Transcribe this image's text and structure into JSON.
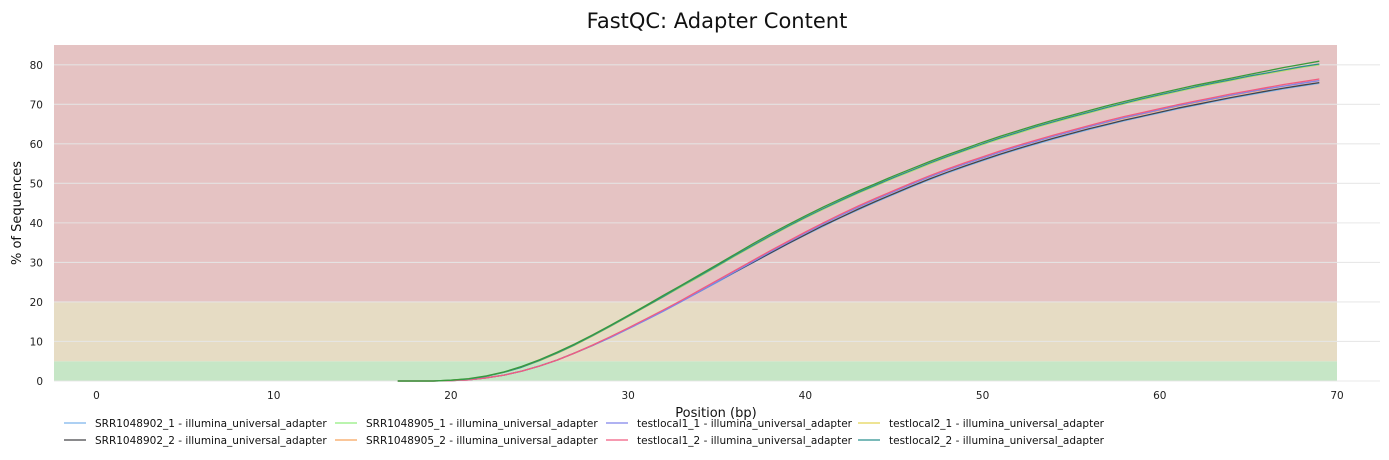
{
  "chart_data": {
    "type": "line",
    "title": "FastQC: Adapter Content",
    "xlabel": "Position (bp)",
    "ylabel": "% of Sequences",
    "xlim": [
      -2.4,
      70
    ],
    "ylim": [
      0,
      85
    ],
    "xticks": [
      0,
      10,
      20,
      30,
      40,
      50,
      60,
      70
    ],
    "yticks": [
      0,
      10,
      20,
      30,
      40,
      50,
      60,
      70,
      80
    ],
    "grid": true,
    "legend_position": "bottom",
    "bands": [
      {
        "from": 0,
        "to": 5,
        "color": "#c6e6c6"
      },
      {
        "from": 5,
        "to": 20,
        "color": "#e6dcc4"
      },
      {
        "from": 20,
        "to": 85,
        "color": "#e5c3c3"
      }
    ],
    "x": [
      17,
      18,
      19,
      20,
      21,
      22,
      23,
      24,
      25,
      26,
      27,
      28,
      29,
      30,
      31,
      32,
      33,
      34,
      35,
      36,
      37,
      38,
      39,
      40,
      41,
      42,
      43,
      44,
      45,
      46,
      47,
      48,
      49,
      50,
      51,
      52,
      53,
      54,
      55,
      56,
      57,
      58,
      59,
      60,
      61,
      62,
      63,
      64,
      65,
      66,
      67,
      68,
      69
    ],
    "series": [
      {
        "name": "SRR1048902_1 - illumina_universal_adapter",
        "color": "#7cb5ec",
        "values": [
          0,
          0,
          0,
          0.1,
          0.3,
          0.8,
          1.5,
          2.5,
          3.8,
          5.3,
          7.1,
          9.0,
          11.0,
          13.2,
          15.4,
          17.7,
          20.1,
          22.5,
          24.9,
          27.4,
          29.8,
          32.2,
          34.6,
          36.9,
          39.1,
          41.3,
          43.3,
          45.3,
          47.2,
          49.1,
          50.9,
          52.6,
          54.2,
          55.7,
          57.2,
          58.6,
          59.9,
          61.2,
          62.4,
          63.6,
          64.7,
          65.8,
          66.8,
          67.8,
          68.8,
          69.7,
          70.6,
          71.5,
          72.3,
          73.1,
          73.9,
          74.6,
          75.3
        ]
      },
      {
        "name": "SRR1048902_2 - illumina_universal_adapter",
        "color": "#434348",
        "values": [
          0,
          0,
          0,
          0.1,
          0.3,
          0.8,
          1.5,
          2.5,
          3.8,
          5.3,
          7.1,
          9.0,
          11.1,
          13.3,
          15.5,
          17.8,
          20.2,
          22.6,
          25.1,
          27.5,
          29.9,
          32.3,
          34.7,
          37.0,
          39.3,
          41.4,
          43.5,
          45.5,
          47.4,
          49.3,
          51.1,
          52.8,
          54.4,
          55.9,
          57.4,
          58.8,
          60.1,
          61.4,
          62.6,
          63.8,
          64.9,
          66.0,
          67.0,
          68.0,
          69.0,
          69.9,
          70.8,
          71.7,
          72.5,
          73.3,
          74.1,
          74.8,
          75.5
        ]
      },
      {
        "name": "SRR1048905_1 - illumina_universal_adapter",
        "color": "#90ed7d",
        "values": [
          0,
          0,
          0,
          0.2,
          0.5,
          1.2,
          2.2,
          3.5,
          5.1,
          7.0,
          9.1,
          11.4,
          13.8,
          16.3,
          18.8,
          21.3,
          23.8,
          26.3,
          28.9,
          31.5,
          34.0,
          36.5,
          38.9,
          41.2,
          43.4,
          45.5,
          47.5,
          49.4,
          51.3,
          53.1,
          54.9,
          56.6,
          58.2,
          59.8,
          61.3,
          62.7,
          64.1,
          65.4,
          66.6,
          67.8,
          69.0,
          70.1,
          71.2,
          72.2,
          73.2,
          74.2,
          75.1,
          76.0,
          76.9,
          77.7,
          78.5,
          79.3,
          80.0
        ]
      },
      {
        "name": "SRR1048905_2 - illumina_universal_adapter",
        "color": "#f7a35c",
        "values": [
          0,
          0,
          0,
          0.1,
          0.3,
          0.8,
          1.5,
          2.5,
          3.8,
          5.3,
          7.1,
          9.0,
          11.1,
          13.3,
          15.6,
          17.9,
          20.3,
          22.8,
          25.3,
          27.8,
          30.3,
          32.7,
          35.1,
          37.4,
          39.7,
          41.9,
          44.0,
          46.0,
          47.9,
          49.8,
          51.6,
          53.3,
          54.9,
          56.4,
          57.9,
          59.3,
          60.6,
          61.9,
          63.1,
          64.3,
          65.4,
          66.5,
          67.5,
          68.5,
          69.5,
          70.4,
          71.3,
          72.2,
          73.0,
          73.8,
          74.6,
          75.3,
          76.0
        ]
      },
      {
        "name": "testlocal1_1 - illumina_universal_adapter",
        "color": "#8085e9",
        "values": [
          0,
          0,
          0,
          0.1,
          0.3,
          0.8,
          1.5,
          2.5,
          3.8,
          5.3,
          7.1,
          9.0,
          11.0,
          13.2,
          15.4,
          17.7,
          20.1,
          22.6,
          25.1,
          27.6,
          30.1,
          32.6,
          35.0,
          37.4,
          39.7,
          41.9,
          44.0,
          46.0,
          47.9,
          49.8,
          51.6,
          53.3,
          54.9,
          56.4,
          57.9,
          59.3,
          60.6,
          61.9,
          63.1,
          64.3,
          65.5,
          66.6,
          67.6,
          68.6,
          69.6,
          70.5,
          71.4,
          72.3,
          73.1,
          73.9,
          74.6,
          75.3,
          76.0
        ]
      },
      {
        "name": "testlocal1_2 - illumina_universal_adapter",
        "color": "#f15c80",
        "values": [
          0,
          0,
          0,
          0.1,
          0.3,
          0.8,
          1.5,
          2.5,
          3.8,
          5.3,
          7.1,
          9.1,
          11.2,
          13.4,
          15.7,
          18.0,
          20.4,
          22.9,
          25.4,
          27.9,
          30.4,
          32.9,
          35.3,
          37.7,
          40.0,
          42.2,
          44.3,
          46.3,
          48.2,
          50.1,
          51.9,
          53.6,
          55.2,
          56.7,
          58.2,
          59.6,
          60.9,
          62.2,
          63.4,
          64.6,
          65.8,
          66.9,
          67.9,
          68.9,
          69.9,
          70.8,
          71.7,
          72.6,
          73.4,
          74.2,
          75.0,
          75.7,
          76.4
        ]
      },
      {
        "name": "testlocal2_1 - illumina_universal_adapter",
        "color": "#e4d354",
        "values": [
          0,
          0,
          0,
          0.2,
          0.5,
          1.2,
          2.2,
          3.5,
          5.1,
          7.0,
          9.1,
          11.4,
          13.8,
          16.3,
          18.8,
          21.3,
          23.9,
          26.4,
          29.0,
          31.6,
          34.1,
          36.6,
          39.0,
          41.3,
          43.5,
          45.6,
          47.6,
          49.5,
          51.4,
          53.2,
          55.0,
          56.7,
          58.3,
          59.9,
          61.4,
          62.8,
          64.2,
          65.5,
          66.7,
          67.9,
          69.1,
          70.2,
          71.3,
          72.3,
          73.3,
          74.3,
          75.2,
          76.1,
          77.0,
          77.8,
          78.6,
          79.4,
          80.1
        ]
      },
      {
        "name": "testlocal2_2 - illumina_universal_adapter",
        "color": "#2b908f",
        "values": [
          0,
          0,
          0,
          0.2,
          0.5,
          1.2,
          2.2,
          3.5,
          5.2,
          7.1,
          9.2,
          11.5,
          13.9,
          16.4,
          18.9,
          21.4,
          24.0,
          26.5,
          29.1,
          31.7,
          34.2,
          36.7,
          39.1,
          41.4,
          43.6,
          45.7,
          47.7,
          49.6,
          51.5,
          53.3,
          55.1,
          56.8,
          58.4,
          60.0,
          61.5,
          62.9,
          64.3,
          65.6,
          66.8,
          68.0,
          69.2,
          70.3,
          71.4,
          72.4,
          73.4,
          74.4,
          75.3,
          76.2,
          77.1,
          77.9,
          78.7,
          79.5,
          80.2
        ]
      },
      {
        "name": "",
        "color": "#3a9a3a",
        "values": [
          0,
          0,
          0,
          0.2,
          0.6,
          1.3,
          2.3,
          3.7,
          5.4,
          7.3,
          9.4,
          11.7,
          14.1,
          16.6,
          19.1,
          21.7,
          24.2,
          26.8,
          29.4,
          32.0,
          34.6,
          37.1,
          39.5,
          41.8,
          44.0,
          46.1,
          48.1,
          50.0,
          51.9,
          53.7,
          55.5,
          57.2,
          58.8,
          60.4,
          61.9,
          63.3,
          64.7,
          66.0,
          67.2,
          68.4,
          69.6,
          70.7,
          71.8,
          72.8,
          73.8,
          74.8,
          75.7,
          76.6,
          77.5,
          78.4,
          79.3,
          80.1,
          80.9
        ]
      }
    ]
  }
}
